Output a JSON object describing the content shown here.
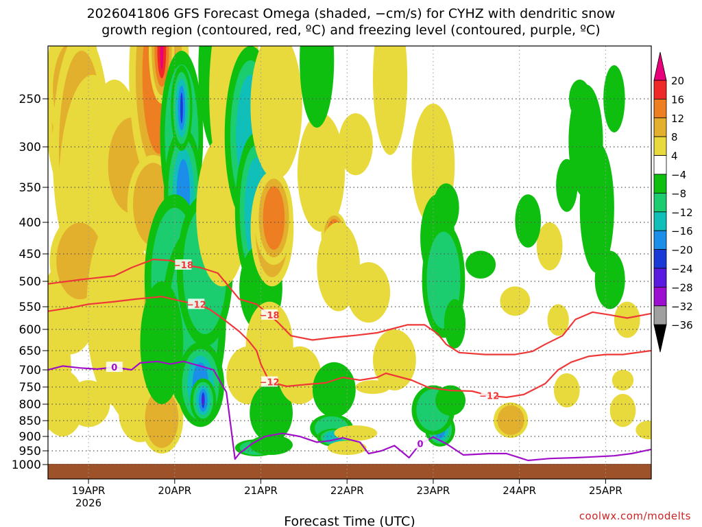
{
  "chart_data": {
    "type": "heatmap",
    "title_line1": "2026041806 GFS Forecast Omega (shaded, −cm/s) for CYHZ with dendritic snow",
    "title_line2": "growth region (contoured, red, ºC) and freezing level (contoured, purple, ºC)",
    "xlabel": "Forecast Time (UTC)",
    "ylabel": "",
    "credit": "coolwx.com/modelts",
    "y_ticks": [
      "250",
      "300",
      "350",
      "400",
      "450",
      "500",
      "550",
      "600",
      "650",
      "700",
      "750",
      "800",
      "850",
      "900",
      "950",
      "1000"
    ],
    "x_ticks": [
      "19APR",
      "20APR",
      "21APR",
      "22APR",
      "23APR",
      "24APR",
      "25APR"
    ],
    "x_year": "2026",
    "x_range_days": [
      0.53,
      7.53
    ],
    "y_range_hpa": [
      1000,
      200
    ],
    "colorbar_ticks": [
      "20",
      "16",
      "12",
      "8",
      "4",
      "−4",
      "−8",
      "−12",
      "−16",
      "−20",
      "−24",
      "−28",
      "−32",
      "−36"
    ],
    "colorbar_colors": [
      "#e8007a",
      "#f02828",
      "#ee7e22",
      "#e3b02e",
      "#e8da3c",
      "#ffffff",
      "#0fbf0f",
      "#1ccd70",
      "#10c0b8",
      "#1a8ee8",
      "#1a3ad8",
      "#5a1ae0",
      "#9c0ed0",
      "#a0a0a0",
      "#000000"
    ],
    "contours": [
      {
        "name": "isotherm -18C",
        "label": "−18",
        "color": "#ee3838",
        "points": [
          [
            0.53,
            505
          ],
          [
            0.9,
            497
          ],
          [
            1.3,
            490
          ],
          [
            1.5,
            475
          ],
          [
            1.75,
            460
          ],
          [
            1.95,
            462
          ],
          [
            2.1,
            470
          ],
          [
            2.3,
            475
          ],
          [
            2.5,
            485
          ],
          [
            2.75,
            535
          ],
          [
            2.95,
            545
          ],
          [
            3.1,
            568
          ],
          [
            3.2,
            585
          ],
          [
            3.35,
            615
          ],
          [
            3.6,
            625
          ],
          [
            3.8,
            620
          ],
          [
            4.1,
            614
          ],
          [
            4.35,
            608
          ],
          [
            4.5,
            600
          ],
          [
            4.7,
            590
          ],
          [
            4.9,
            590
          ],
          [
            5.05,
            610
          ],
          [
            5.15,
            635
          ],
          [
            5.3,
            655
          ],
          [
            5.6,
            660
          ],
          [
            5.95,
            660
          ],
          [
            6.15,
            652
          ],
          [
            6.3,
            635
          ],
          [
            6.5,
            615
          ],
          [
            6.65,
            578
          ],
          [
            6.85,
            562
          ],
          [
            7.05,
            568
          ],
          [
            7.25,
            575
          ],
          [
            7.53,
            565
          ]
        ]
      },
      {
        "name": "isotherm -12C",
        "label": "−12",
        "color": "#ee3838",
        "points": [
          [
            0.53,
            560
          ],
          [
            0.8,
            552
          ],
          [
            1.0,
            545
          ],
          [
            1.3,
            540
          ],
          [
            1.55,
            535
          ],
          [
            1.85,
            530
          ],
          [
            2.05,
            538
          ],
          [
            2.25,
            545
          ],
          [
            2.4,
            555
          ],
          [
            2.55,
            575
          ],
          [
            2.75,
            605
          ],
          [
            2.85,
            625
          ],
          [
            2.95,
            650
          ],
          [
            3.0,
            685
          ],
          [
            3.1,
            735
          ],
          [
            3.3,
            748
          ],
          [
            3.55,
            742
          ],
          [
            3.75,
            738
          ],
          [
            3.95,
            722
          ],
          [
            4.15,
            730
          ],
          [
            4.35,
            722
          ],
          [
            4.45,
            710
          ],
          [
            4.75,
            730
          ],
          [
            4.95,
            752
          ],
          [
            5.2,
            760
          ],
          [
            5.45,
            762
          ],
          [
            5.65,
            775
          ],
          [
            5.85,
            780
          ],
          [
            6.05,
            772
          ],
          [
            6.3,
            740
          ],
          [
            6.45,
            700
          ],
          [
            6.6,
            680
          ],
          [
            6.8,
            665
          ],
          [
            7.0,
            660
          ],
          [
            7.2,
            660
          ],
          [
            7.53,
            650
          ]
        ]
      },
      {
        "name": "freezing level 0C",
        "label": "0",
        "color": "#a00ec8",
        "points": [
          [
            0.53,
            700
          ],
          [
            0.7,
            690
          ],
          [
            0.9,
            695
          ],
          [
            1.1,
            698
          ],
          [
            1.3,
            693
          ],
          [
            1.5,
            700
          ],
          [
            1.6,
            682
          ],
          [
            1.8,
            678
          ],
          [
            1.95,
            685
          ],
          [
            2.1,
            678
          ],
          [
            2.3,
            690
          ],
          [
            2.45,
            700
          ],
          [
            2.6,
            765
          ],
          [
            2.65,
            865
          ],
          [
            2.7,
            980
          ],
          [
            2.75,
            960
          ],
          [
            2.9,
            925
          ],
          [
            3.05,
            900
          ],
          [
            3.25,
            890
          ],
          [
            3.45,
            900
          ],
          [
            3.65,
            920
          ],
          [
            3.8,
            915
          ],
          [
            3.95,
            905
          ],
          [
            4.15,
            920
          ],
          [
            4.25,
            960
          ],
          [
            4.4,
            950
          ],
          [
            4.55,
            932
          ],
          [
            4.72,
            975
          ],
          [
            4.85,
            925
          ],
          [
            5.0,
            902
          ],
          [
            5.15,
            925
          ],
          [
            5.35,
            965
          ],
          [
            5.65,
            960
          ],
          [
            5.85,
            960
          ],
          [
            6.1,
            985
          ],
          [
            6.35,
            978
          ],
          [
            6.65,
            975
          ],
          [
            6.85,
            972
          ],
          [
            7.1,
            968
          ],
          [
            7.3,
            960
          ],
          [
            7.53,
            945
          ]
        ]
      }
    ]
  }
}
